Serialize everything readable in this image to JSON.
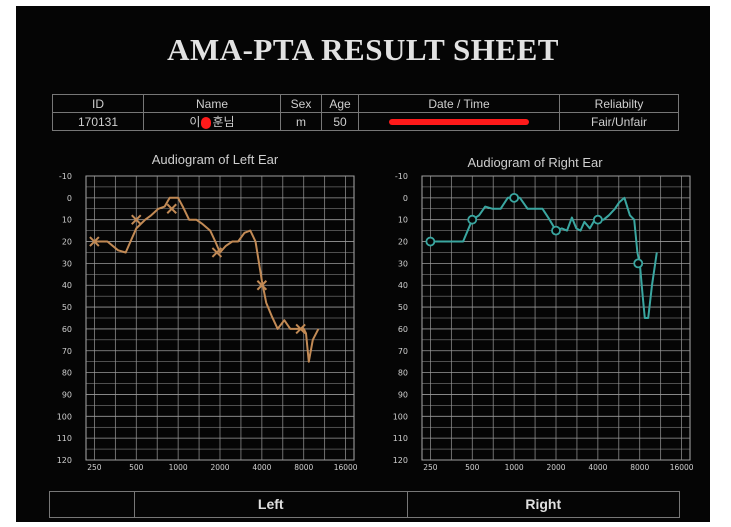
{
  "title": "AMA-PTA RESULT SHEET",
  "info": {
    "headers": [
      "ID",
      "Name",
      "Sex",
      "Age",
      "Date / Time",
      "Reliabilty"
    ],
    "id": "170131",
    "name_prefix": "이",
    "name_suffix": "훈님",
    "sex": "m",
    "age": "50",
    "reliability": "Fair/Unfair"
  },
  "footer": {
    "left": "Left",
    "right": "Right"
  },
  "colors": {
    "left_ear": "#c28a55",
    "right_ear": "#3aa6a0",
    "grid": "#9a9a9a",
    "background": "#050505"
  },
  "chart_data": [
    {
      "type": "line",
      "title": "Audiogram of Left Ear",
      "x_scale": "log",
      "x_ticks": [
        250,
        500,
        1000,
        2000,
        4000,
        8000,
        16000
      ],
      "y_ticks": [
        -10,
        0,
        10,
        20,
        30,
        40,
        50,
        60,
        70,
        80,
        90,
        100,
        110,
        120
      ],
      "ylim": [
        -10,
        120
      ],
      "y_inverted": true,
      "grid": true,
      "marker": "x",
      "series": [
        {
          "x": [
            250,
            310,
            370,
            420,
            500,
            580,
            640,
            720,
            800,
            870,
            940,
            1000,
            1080,
            1200,
            1350,
            1500,
            1700,
            1850,
            2000,
            2200,
            2450,
            2700,
            3000,
            3300,
            3600,
            4000,
            4300,
            4700,
            5200,
            5800,
            6400,
            7100,
            7700,
            8000,
            8300,
            8700,
            9300,
            10200
          ],
          "y": [
            20,
            20,
            24,
            25,
            14,
            10,
            8,
            5,
            4,
            0,
            0,
            0,
            4,
            10,
            10,
            12,
            15,
            20,
            25,
            22,
            20,
            20,
            16,
            15,
            20,
            38,
            48,
            54,
            60,
            56,
            60,
            60,
            60,
            60,
            62,
            75,
            65,
            60
          ]
        }
      ],
      "markers": {
        "x": [
          250,
          500,
          900,
          1900,
          4000,
          7600
        ],
        "y": [
          20,
          10,
          5,
          25,
          40,
          60
        ]
      }
    },
    {
      "type": "line",
      "title": "Audiogram of Right Ear",
      "x_scale": "log",
      "x_ticks": [
        250,
        500,
        1000,
        2000,
        4000,
        8000,
        16000
      ],
      "y_ticks": [
        -10,
        0,
        10,
        20,
        30,
        40,
        50,
        60,
        70,
        80,
        90,
        100,
        110,
        120
      ],
      "ylim": [
        -10,
        120
      ],
      "y_inverted": true,
      "grid": true,
      "marker": "o",
      "series": [
        {
          "x": [
            250,
            320,
            380,
            430,
            500,
            560,
            620,
            700,
            800,
            900,
            1000,
            1100,
            1250,
            1400,
            1600,
            1800,
            2000,
            2200,
            2400,
            2600,
            2800,
            3000,
            3200,
            3500,
            3800,
            4000,
            4400,
            4800,
            5300,
            5700,
            6200,
            6800,
            7300,
            7700,
            8000,
            8400,
            8700,
            9200,
            9800,
            10600
          ],
          "y": [
            20,
            20,
            20,
            20,
            10,
            8,
            4,
            5,
            5,
            0,
            0,
            0,
            5,
            5,
            5,
            10,
            15,
            14,
            15,
            9,
            14,
            15,
            11,
            14,
            10,
            10,
            10,
            8,
            5,
            2,
            0,
            8,
            10,
            25,
            30,
            45,
            55,
            55,
            40,
            25
          ]
        }
      ],
      "markers": {
        "x": [
          250,
          500,
          1000,
          2000,
          4000,
          7800
        ],
        "y": [
          20,
          10,
          0,
          15,
          10,
          30
        ]
      }
    }
  ]
}
